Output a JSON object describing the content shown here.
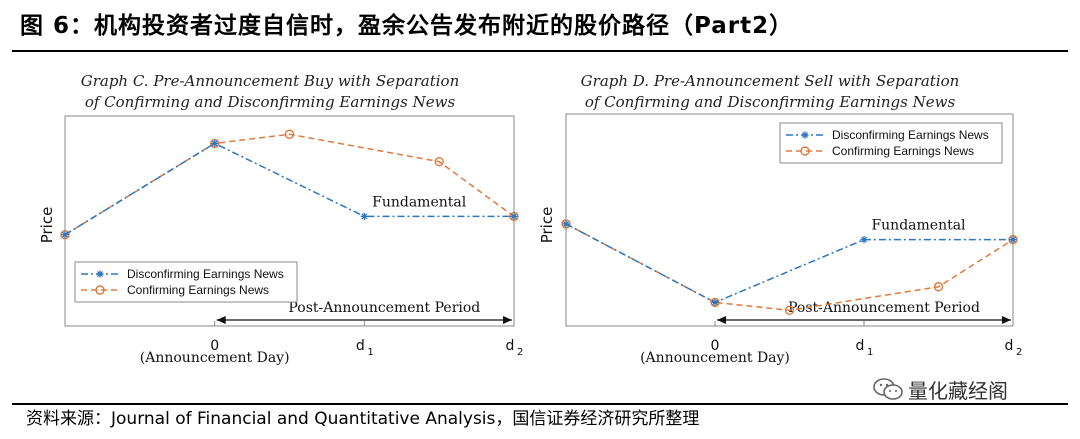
{
  "header": {
    "title": "图 6：机构投资者过度自信时，盈余公告发布附近的股价路径（Part2）"
  },
  "footer": {
    "source": "资料来源：Journal of Financial and Quantitative Analysis，国信证券经济研究所整理",
    "watermark": "量化藏经阁"
  },
  "colors": {
    "disconfirming": "#2f76c0",
    "confirming": "#e07a3b",
    "axis": "#555555"
  },
  "chart_data": [
    {
      "type": "line",
      "title_line1": "Graph C. Pre-Announcement Buy with Separation",
      "title_line2": "of Confirming and Disconfirming Earnings News",
      "ylabel": "Price",
      "x_ticks": [
        {
          "x": 0,
          "label": "0"
        },
        {
          "x": 1,
          "label": "d",
          "sub": "1"
        },
        {
          "x": 2,
          "label": "d",
          "sub": "2"
        }
      ],
      "announcement_label": "(Announcement Day)",
      "period_label": "Post-Announcement Period",
      "fundamental_label": "Fundamental",
      "legend_position": "bottom-left",
      "xlim": [
        -1,
        2
      ],
      "ylim": [
        -1,
        1.3
      ],
      "series": [
        {
          "name": "Disconfirming Earnings News",
          "style": "dashdot",
          "marker": "asterisk",
          "x": [
            -1,
            0,
            1,
            2
          ],
          "y": [
            0,
            1,
            0.2,
            0.2
          ]
        },
        {
          "name": "Confirming Earnings News",
          "style": "dashed",
          "marker": "circle",
          "x": [
            -1,
            0,
            0.5,
            1.5,
            2
          ],
          "y": [
            0,
            1,
            1.1,
            0.8,
            0.2
          ]
        }
      ]
    },
    {
      "type": "line",
      "title_line1": "Graph D. Pre-Announcement Sell with Separation",
      "title_line2": "of Confirming and Disconfirming Earnings News",
      "ylabel": "Price",
      "x_ticks": [
        {
          "x": 0,
          "label": "0"
        },
        {
          "x": 1,
          "label": "d",
          "sub": "1"
        },
        {
          "x": 2,
          "label": "d",
          "sub": "2"
        }
      ],
      "announcement_label": "(Announcement Day)",
      "period_label": "Post-Announcement Period",
      "fundamental_label": "Fundamental",
      "legend_position": "top-right",
      "xlim": [
        -1,
        2
      ],
      "ylim": [
        -1.3,
        1.4
      ],
      "series": [
        {
          "name": "Disconfirming Earnings News",
          "style": "dashdot",
          "marker": "asterisk",
          "x": [
            -1,
            0,
            1,
            2
          ],
          "y": [
            0,
            -1,
            -0.2,
            -0.2
          ]
        },
        {
          "name": "Confirming Earnings News",
          "style": "dashed",
          "marker": "circle",
          "x": [
            -1,
            0,
            0.5,
            1.5,
            2
          ],
          "y": [
            0,
            -1,
            -1.1,
            -0.8,
            -0.2
          ]
        }
      ]
    }
  ]
}
